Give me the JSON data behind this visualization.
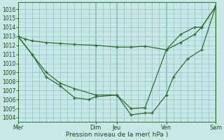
{
  "background_color": "#c8e8e8",
  "grid_color": "#90c0c0",
  "line_color": "#2d6e2d",
  "xlabel": "Pression niveau de la mer( hPa )",
  "ylim": [
    1003.5,
    1016.8
  ],
  "yticks": [
    1004,
    1005,
    1006,
    1007,
    1008,
    1009,
    1010,
    1011,
    1012,
    1013,
    1014,
    1015,
    1016
  ],
  "xlim": [
    0,
    14
  ],
  "xtick_pos": [
    0,
    5.5,
    7,
    10.5,
    14
  ],
  "xtick_labels": [
    "Mer",
    "Dim",
    "Jeu",
    "Ven",
    "Sam"
  ],
  "vlines": [
    0,
    5.5,
    7,
    10.5,
    14
  ],
  "series1_x": [
    0,
    0.5,
    1.0,
    2.0,
    3.0,
    4.0,
    5.5,
    7.0,
    8.0,
    9.0,
    10.5,
    11.5,
    12.5,
    13.0,
    14.0
  ],
  "series1_y": [
    1013.0,
    1012.7,
    1012.5,
    1012.3,
    1012.2,
    1012.1,
    1012.0,
    1011.8,
    1011.8,
    1011.9,
    1011.5,
    1012.3,
    1013.2,
    1014.0,
    1016.3
  ],
  "series2_x": [
    0,
    1.0,
    2.0,
    3.0,
    4.0,
    5.5,
    7.0,
    8.0,
    9.0,
    10.5,
    11.5,
    12.5,
    13.0,
    14.0
  ],
  "series2_y": [
    1013.0,
    1011.0,
    1009.0,
    1007.8,
    1007.2,
    1006.5,
    1006.5,
    1005.0,
    1005.1,
    1011.5,
    1013.2,
    1014.0,
    1014.0,
    1016.3
  ],
  "series3_x": [
    0,
    1.0,
    2.0,
    3.0,
    4.0,
    5.0,
    5.5,
    7.0,
    8.0,
    9.0,
    9.5,
    10.5,
    11.0,
    12.0,
    13.0,
    14.0
  ],
  "series3_y": [
    1013.0,
    1011.0,
    1008.5,
    1007.5,
    1006.2,
    1006.0,
    1006.3,
    1006.5,
    1004.3,
    1004.5,
    1004.5,
    1006.5,
    1008.5,
    1010.5,
    1011.5,
    1016.3
  ]
}
